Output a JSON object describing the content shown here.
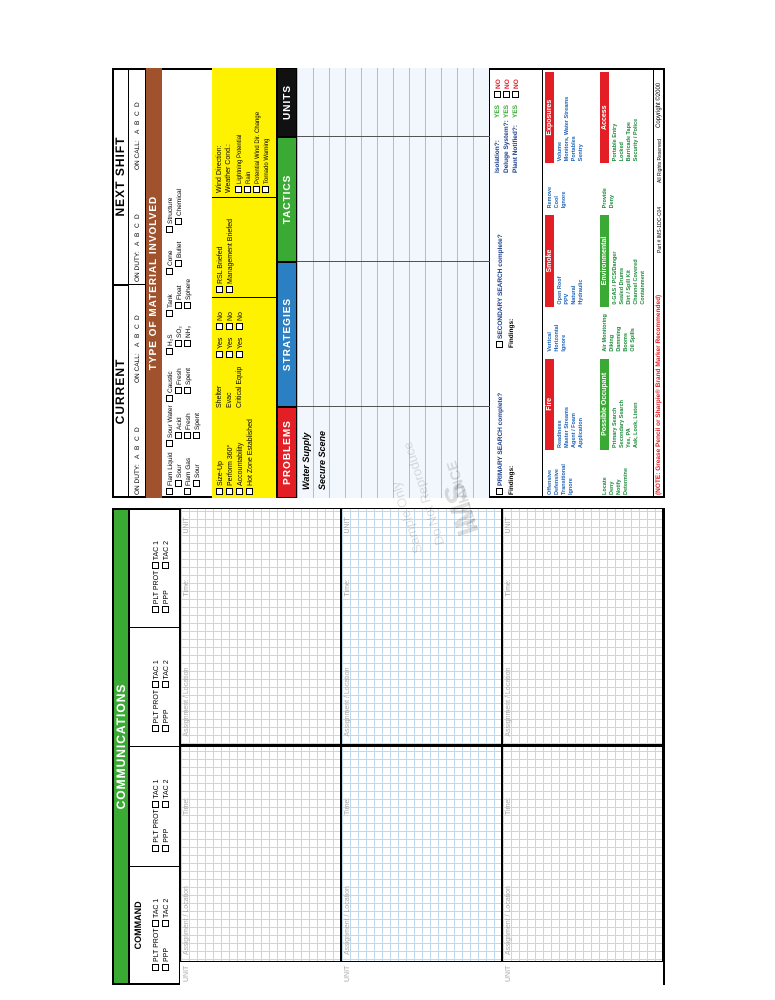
{
  "communications": {
    "title": "COMMUNICATIONS",
    "channels": [
      {
        "name": "COMMAND",
        "options": [
          "PLT PROT",
          "TAC 1",
          "PPP",
          "TAC 2"
        ]
      },
      {
        "options": [
          "PLT PROT",
          "TAC 1",
          "PPP",
          "TAC 2"
        ]
      },
      {
        "options": [
          "PLT PROT",
          "TAC 1",
          "PPP",
          "TAC 2"
        ]
      },
      {
        "options": [
          "PLT PROT",
          "TAC 1",
          "PPP",
          "TAC 2"
        ]
      }
    ],
    "unit_label": "UNIT",
    "assignment_label": "Assignment / Location",
    "time_label": "Time:"
  },
  "shift": {
    "current": "CURRENT",
    "next": "NEXT SHIFT",
    "on_duty": "ON DUTY:",
    "on_call": "ON CALL:",
    "letters": [
      "A",
      "B",
      "C",
      "D"
    ]
  },
  "material": {
    "title": "TYPE OF MATERIAL INVOLVED",
    "columns": [
      [
        "Flam Liquid",
        "Sour",
        "Flam Gas",
        "Sour"
      ],
      [
        "Sour Water",
        "Acid",
        "Fresh",
        "Spent"
      ],
      [
        "Caustic",
        "Fresh",
        "Spent"
      ],
      [
        "H₂S",
        "SO₂",
        "NH₃"
      ],
      [
        "Tank",
        "Float",
        "Sphere"
      ],
      [
        "Cone",
        "Bullet"
      ],
      [
        "Structure",
        "Chemical"
      ]
    ]
  },
  "size_up": [
    "Size-Up",
    "Perform 360°",
    "Accountability",
    "Hot Zone Established"
  ],
  "shelter": [
    "Shelter",
    "Evac",
    "Critical Equip"
  ],
  "yes": "Yes",
  "no": "No",
  "briefing": [
    "RSL Briefed",
    "Management Briefed"
  ],
  "weather": {
    "labels": [
      "Wind Direction:",
      "Weather Cond.:"
    ],
    "options": [
      "Lightning Potential",
      "Rain",
      "Potential Wind Dir. Change",
      "Tornado Warning"
    ]
  },
  "headers": [
    "PROBLEMS",
    "STRATEGIES",
    "TACTICS",
    "UNITS"
  ],
  "problems": [
    "Water Supply",
    "Secure Scene"
  ],
  "search": {
    "primary": "PRIMARY SEARCH complete?",
    "secondary": "SECONDARY SEARCH complete?",
    "findings": "Findings:",
    "checks": [
      "Isolation?:",
      "Deluge System?:",
      "Plant Notified?:"
    ],
    "yes": "YES",
    "no": "NO"
  },
  "reference": [
    [
      {
        "left": [
          "Offensive",
          "Defensive",
          "Transitional",
          "Ignore"
        ],
        "title": "Fire",
        "right": [
          "Readiness",
          "Master Streams",
          "Agent / Foam",
          "Application"
        ]
      },
      {
        "left": [
          "Vertical",
          "Horizontal",
          "Ignore"
        ],
        "title": "Smoke",
        "right": [
          "Open Roof",
          "PPV",
          "Natural",
          "Hydraulic"
        ]
      },
      {
        "left": [
          "Remove",
          "Cool",
          "Ignore"
        ],
        "title": "Exposures",
        "right": [
          "Volume",
          "Monitors, Water Streams",
          "Portables",
          "Sentry"
        ]
      }
    ],
    [
      {
        "left": [
          "Locate",
          "Deny",
          "Notify",
          "Determine"
        ],
        "title": "Possible Occupant",
        "right": [
          "Primary Search",
          "Secondary Search",
          "Yes, PA",
          "Ask, Look, Listen"
        ]
      },
      {
        "left": [
          "Air Monitoring",
          "Diking",
          "Damming",
          "Booms",
          "Oil Spills"
        ],
        "title": "Environmental",
        "right": [
          "0-GAS / PCS/Danger",
          "Sealed Drums",
          "Dirt / Spill Kit",
          "Channel Covered",
          "Containment"
        ]
      },
      {
        "left": [
          "Provide",
          "Deny"
        ],
        "title": "Access",
        "right": [
          "Portable Entry",
          "Locked",
          "Barricade Tape",
          "Security / Police"
        ]
      }
    ]
  ],
  "footer": {
    "note": "(NOTE: Grease Pencil or Sharpie® Brand Marker Recommended)",
    "part": "Part # IMS-1DC-C04",
    "rights": "All Rights Reserved",
    "copyright": "Copyright ©2000"
  },
  "watermark": [
    "Sample Only",
    "Do Not Reproduce",
    "IMS",
    "ALLIANCE"
  ]
}
